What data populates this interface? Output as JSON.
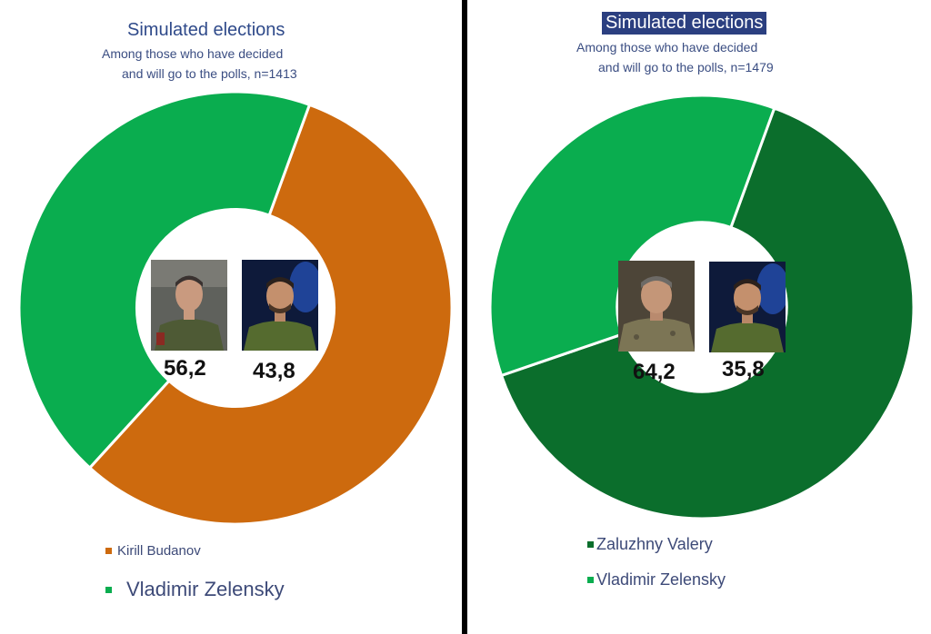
{
  "chart_data": [
    {
      "type": "pie",
      "donut": true,
      "title": "Simulated elections",
      "subtitle_line1": "Among those who have decided",
      "subtitle_line2": "and will go to the polls, n=1413",
      "series": [
        {
          "name": "Kirill Budanov",
          "value": 56.2,
          "label": "56,2",
          "color": "#cd6a0e"
        },
        {
          "name": "Vladimir Zelensky",
          "value": 43.8,
          "label": "43,8",
          "color": "#0aad4f"
        }
      ]
    },
    {
      "type": "pie",
      "donut": true,
      "title": "Simulated elections",
      "subtitle_line1": "Among those who have decided",
      "subtitle_line2": "and will go to the polls, n=1479",
      "series": [
        {
          "name": "Zaluzhny Valery",
          "value": 64.2,
          "label": "64,2",
          "color": "#0b6e2c"
        },
        {
          "name": "Vladimir Zelensky",
          "value": 35.8,
          "label": "35,8",
          "color": "#0aad4f"
        }
      ]
    }
  ]
}
